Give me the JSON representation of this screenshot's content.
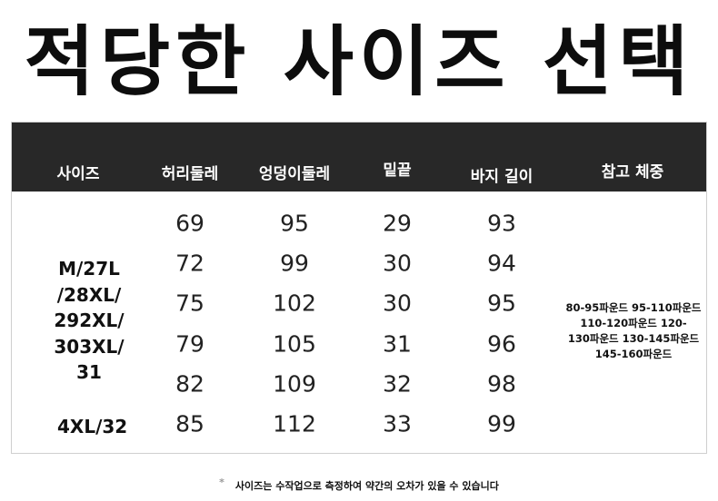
{
  "title": "적당한 사이즈 선택",
  "table": {
    "headers": [
      "사이즈",
      "허리둘레",
      "엉덩이둘레",
      "밑끝",
      "바지 길이",
      "참고 체중"
    ],
    "sizes_group": "M/27L /28XL/ 292XL/ 303XL/ 31",
    "sizes_lines": [
      "M/27L",
      "/28XL/",
      "292XL/",
      "303XL/",
      "31"
    ],
    "size_last": "4XL/32",
    "rows": [
      [
        "69",
        "95",
        "29",
        "93"
      ],
      [
        "72",
        "99",
        "30",
        "94"
      ],
      [
        "75",
        "102",
        "30",
        "95"
      ],
      [
        "79",
        "105",
        "31",
        "96"
      ],
      [
        "82",
        "109",
        "32",
        "98"
      ],
      [
        "85",
        "112",
        "33",
        "99"
      ]
    ],
    "weight_lines": [
      "80-95파운드 95-110파운드",
      "110-120파운드 120-",
      "130파운드 130-145파운드",
      "145-160파운드"
    ]
  },
  "note": {
    "star": "*",
    "text": "사이즈는 수작업으로 측정하여 약간의 오차가 있을 수 있습니다"
  }
}
